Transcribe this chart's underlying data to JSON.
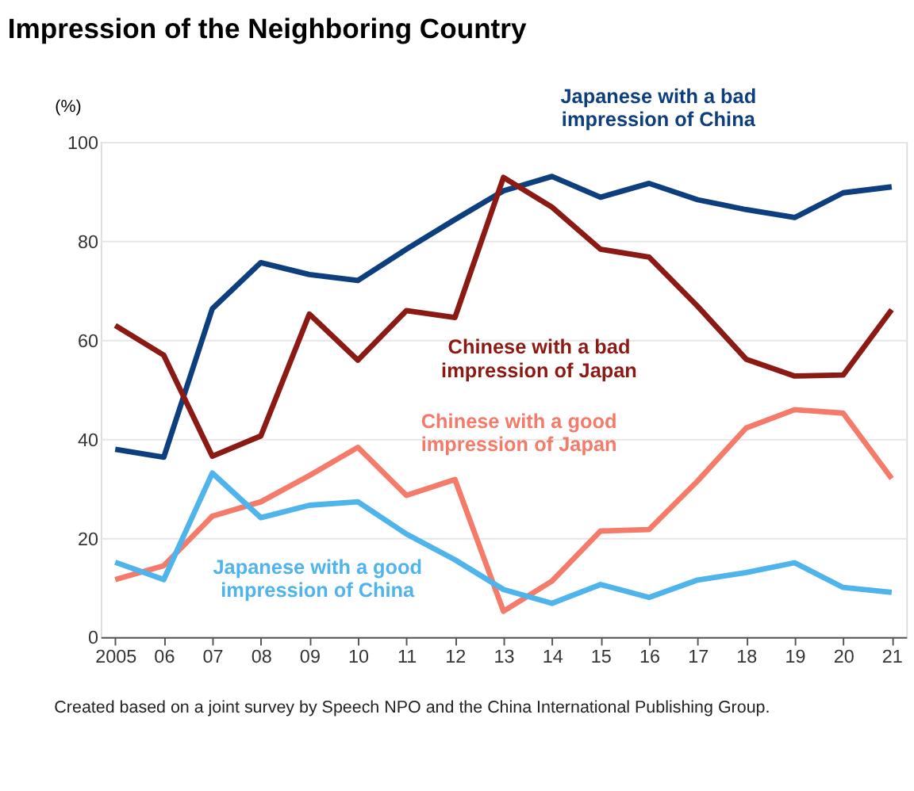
{
  "chart_data": {
    "type": "line",
    "title": "Impression of the Neighboring Country",
    "ylabel": "(%)",
    "categories": [
      "2005",
      "06",
      "07",
      "08",
      "09",
      "10",
      "11",
      "12",
      "13",
      "14",
      "15",
      "16",
      "17",
      "18",
      "19",
      "20",
      "21"
    ],
    "series": [
      {
        "name": "Japanese with a bad impression of China",
        "color": "#0d3f7f",
        "values": [
          37.9,
          36.3,
          66.3,
          75.6,
          73.2,
          72.0,
          78.3,
          84.3,
          90.1,
          93.0,
          88.8,
          91.6,
          88.3,
          86.3,
          84.7,
          89.7,
          90.9
        ]
      },
      {
        "name": "Chinese with a bad impression of Japan",
        "color": "#8c1a14",
        "values": [
          62.9,
          56.9,
          36.5,
          40.6,
          65.2,
          55.9,
          65.9,
          64.5,
          92.8,
          86.8,
          78.3,
          76.7,
          66.8,
          56.1,
          52.7,
          52.9,
          66.1
        ]
      },
      {
        "name": "Chinese with a good impression of Japan",
        "color": "#f47a6a",
        "values": [
          11.6,
          14.4,
          24.4,
          27.3,
          32.6,
          38.3,
          28.6,
          31.8,
          5.2,
          11.3,
          21.4,
          21.7,
          31.5,
          42.2,
          45.9,
          45.2,
          32.0
        ]
      },
      {
        "name": "Japanese with a good impression of China",
        "color": "#4fb3ec",
        "values": [
          15.1,
          11.6,
          33.1,
          24.1,
          26.6,
          27.3,
          20.8,
          15.6,
          9.6,
          6.8,
          10.6,
          8.0,
          11.5,
          13.0,
          15.0,
          10.0,
          9.0
        ]
      }
    ],
    "ylim": [
      0,
      100
    ],
    "yticks": [
      0,
      20,
      40,
      60,
      80,
      100
    ],
    "grid": "y",
    "legend": false,
    "marker": "none",
    "line_style": "solid",
    "annotations": [
      "Created based on a joint survey by Speech NPO and the China International Publishing Group."
    ]
  }
}
